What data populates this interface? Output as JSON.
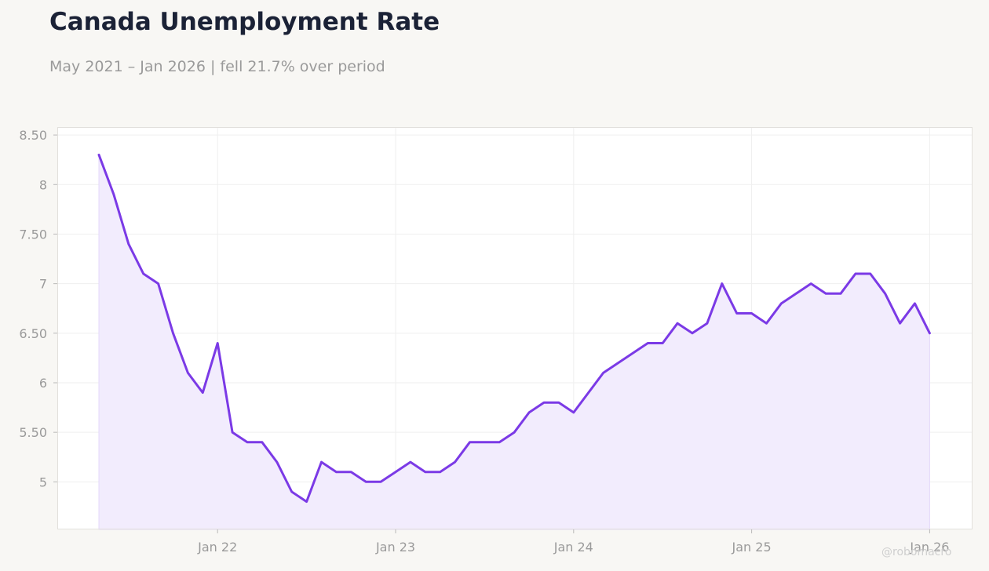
{
  "header": {
    "title": "Canada Unemployment Rate",
    "subtitle": "May 2021 – Jan 2026 | fell 21.7% over period"
  },
  "watermark": "@robomacro",
  "colors": {
    "line": "#7b3ae6",
    "fill": "#f2ecfd",
    "grid": "#efefef",
    "axis_text": "#9a9a9a",
    "plot_background": "#ffffff",
    "page_background": "#f8f7f4"
  },
  "chart_data": {
    "type": "area",
    "title": "Canada Unemployment Rate",
    "subtitle": "May 2021 – Jan 2026 | fell 21.7% over period",
    "xlabel": "",
    "ylabel": "",
    "grid": true,
    "ylim": [
      4.52,
      8.58
    ],
    "xlim": [
      "2021-05",
      "2026-01"
    ],
    "ytick_labels": [
      "5",
      "5.50",
      "6",
      "6.50",
      "7",
      "7.50",
      "8",
      "8.50"
    ],
    "ytick_values": [
      5,
      5.5,
      6,
      6.5,
      7,
      7.5,
      8,
      8.5
    ],
    "xtick_labels": [
      "Jan 22",
      "Jan 23",
      "Jan 24",
      "Jan 25",
      "Jan 26"
    ],
    "xtick_values": [
      "2022-01",
      "2023-01",
      "2024-01",
      "2025-01",
      "2026-01"
    ],
    "x": [
      "2021-05",
      "2021-06",
      "2021-07",
      "2021-08",
      "2021-09",
      "2021-10",
      "2021-11",
      "2021-12",
      "2022-01",
      "2022-02",
      "2022-03",
      "2022-04",
      "2022-05",
      "2022-06",
      "2022-07",
      "2022-08",
      "2022-09",
      "2022-10",
      "2022-11",
      "2022-12",
      "2023-01",
      "2023-02",
      "2023-03",
      "2023-04",
      "2023-05",
      "2023-06",
      "2023-07",
      "2023-08",
      "2023-09",
      "2023-10",
      "2023-11",
      "2023-12",
      "2024-01",
      "2024-02",
      "2024-03",
      "2024-04",
      "2024-05",
      "2024-06",
      "2024-07",
      "2024-08",
      "2024-09",
      "2024-10",
      "2024-11",
      "2024-12",
      "2025-01",
      "2025-02",
      "2025-03",
      "2025-04",
      "2025-05",
      "2025-06",
      "2025-07",
      "2025-08",
      "2025-09",
      "2025-10",
      "2025-11",
      "2025-12",
      "2026-01"
    ],
    "values": [
      8.3,
      7.9,
      7.4,
      7.1,
      7.0,
      6.5,
      6.1,
      5.9,
      6.4,
      5.5,
      5.4,
      5.4,
      5.2,
      4.9,
      4.8,
      5.2,
      5.1,
      5.1,
      5.0,
      5.0,
      5.1,
      5.2,
      5.1,
      5.1,
      5.2,
      5.4,
      5.4,
      5.4,
      5.5,
      5.7,
      5.8,
      5.8,
      5.7,
      5.9,
      6.1,
      6.2,
      6.3,
      6.4,
      6.4,
      6.6,
      6.5,
      6.6,
      7.0,
      6.7,
      6.7,
      6.6,
      6.8,
      6.9,
      7.0,
      6.9,
      6.9,
      7.1,
      7.1,
      6.9,
      6.6,
      6.8,
      6.5
    ]
  }
}
